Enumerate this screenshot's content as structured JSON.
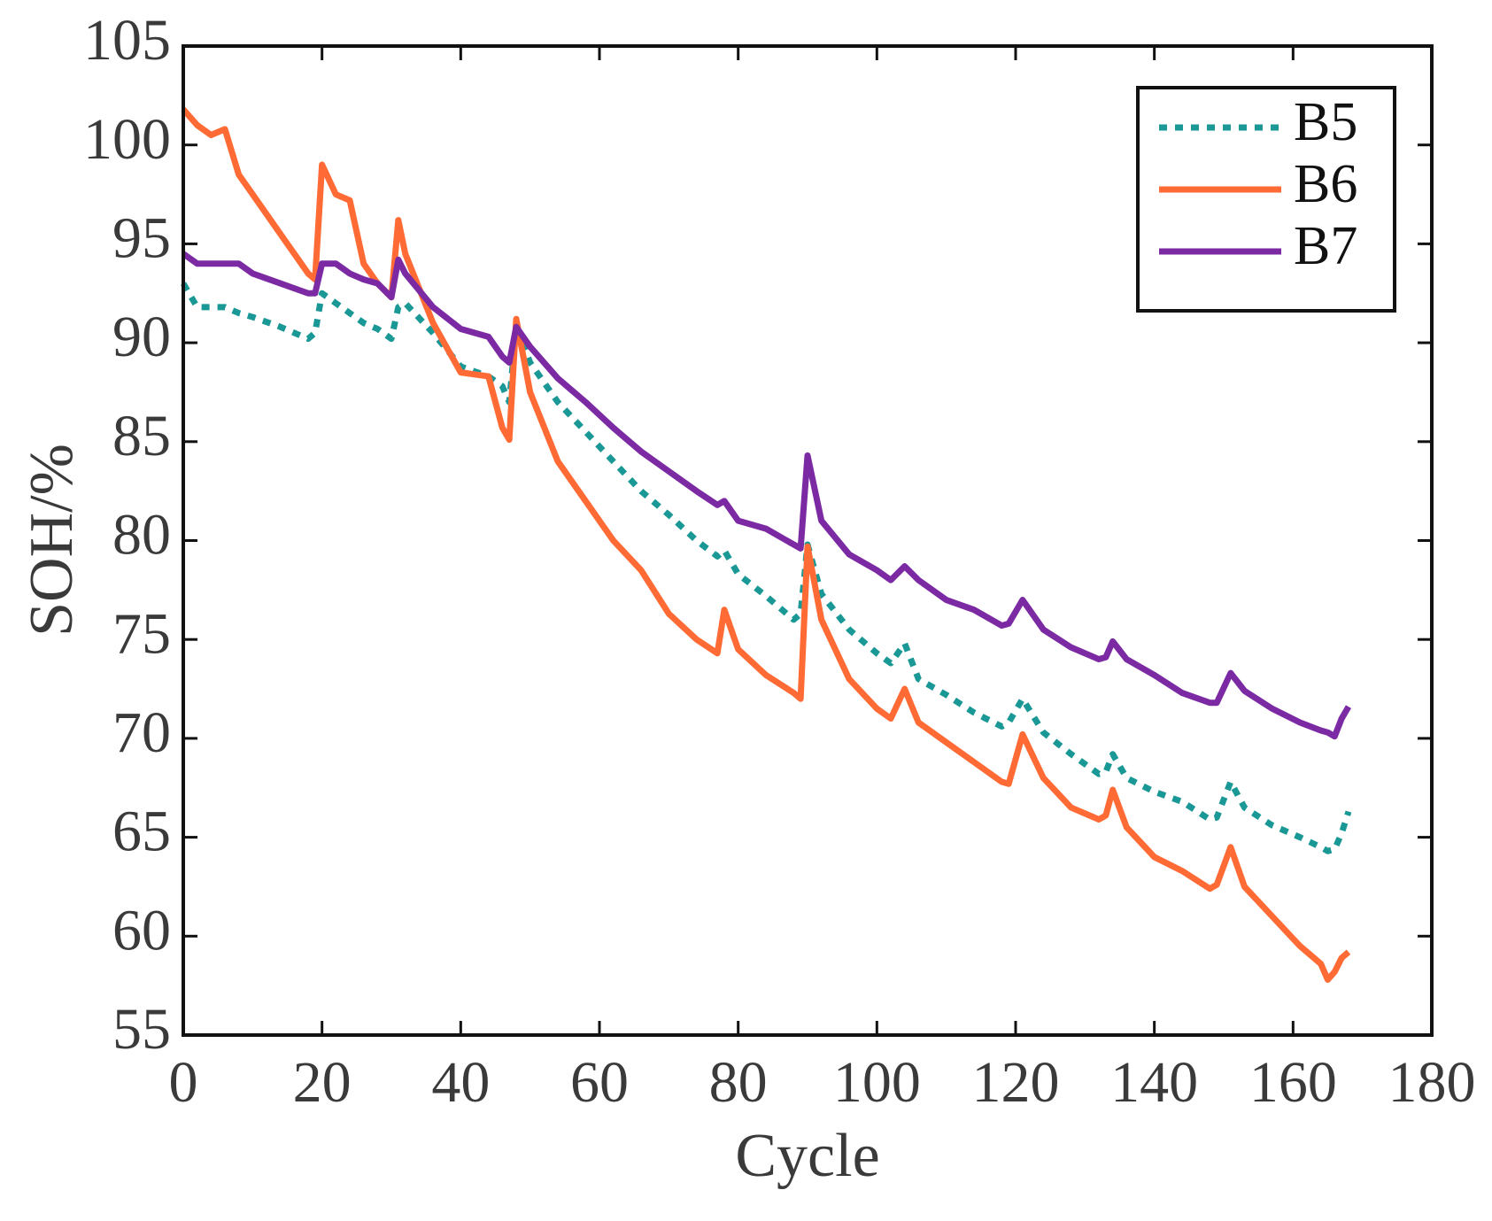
{
  "chart_data": {
    "type": "line",
    "xlabel": "Cycle",
    "ylabel": "SOH/%",
    "x": [
      0,
      2,
      4,
      6,
      8,
      10,
      14,
      18,
      19,
      20,
      22,
      24,
      26,
      28,
      30,
      31,
      32,
      36,
      40,
      44,
      46,
      47,
      48,
      50,
      54,
      58,
      62,
      66,
      70,
      74,
      77,
      78,
      80,
      84,
      88,
      89,
      90,
      92,
      96,
      100,
      102,
      104,
      106,
      110,
      114,
      118,
      119,
      121,
      124,
      128,
      132,
      133,
      134,
      136,
      140,
      144,
      148,
      149,
      151,
      153,
      157,
      161,
      164,
      165,
      166,
      167,
      168
    ],
    "series": [
      {
        "name": "B5",
        "color": "#1a9896",
        "dash": "dotted",
        "values": [
          93,
          91.8,
          91.8,
          91.8,
          91.5,
          91.3,
          90.8,
          90.2,
          90.5,
          92.5,
          92,
          91.5,
          91,
          90.7,
          90.2,
          91.8,
          92,
          90.5,
          88.8,
          88.3,
          87.8,
          87,
          90.8,
          89,
          87,
          85.5,
          84,
          82.5,
          81.3,
          80,
          79.2,
          79.5,
          78.3,
          77.2,
          76,
          76.3,
          79.8,
          77.3,
          75.5,
          74.3,
          73.8,
          74.8,
          73,
          72.2,
          71.3,
          70.6,
          70.8,
          72,
          70.3,
          69.2,
          68.2,
          68.3,
          69.2,
          68,
          67.3,
          66.8,
          65.9,
          66,
          67.8,
          66.5,
          65.6,
          65,
          64.5,
          64.3,
          64.4,
          65.2,
          66.3
        ]
      },
      {
        "name": "B6",
        "color": "#ff6a35",
        "dash": "solid",
        "values": [
          101.8,
          101,
          100.5,
          100.8,
          98.5,
          97.5,
          95.5,
          93.5,
          93.2,
          99,
          97.5,
          97.2,
          94,
          93,
          92.3,
          96.2,
          94.5,
          91,
          88.5,
          88.3,
          85.7,
          85.1,
          91.2,
          87.5,
          84,
          82,
          80,
          78.5,
          76.3,
          75,
          74.3,
          76.5,
          74.5,
          73.2,
          72.3,
          72,
          79.7,
          76,
          73,
          71.5,
          71,
          72.5,
          70.8,
          69.8,
          68.8,
          67.8,
          67.7,
          70.2,
          68,
          66.5,
          65.9,
          66.1,
          67.4,
          65.5,
          64,
          63.3,
          62.4,
          62.6,
          64.5,
          62.5,
          61,
          59.5,
          58.6,
          57.8,
          58.2,
          58.9,
          59.2
        ]
      },
      {
        "name": "B7",
        "color": "#7b2aa3",
        "dash": "solid",
        "values": [
          94.5,
          94,
          94,
          94,
          94,
          93.5,
          93,
          92.5,
          92.5,
          94,
          94,
          93.5,
          93.2,
          93,
          92.3,
          94.2,
          93.5,
          91.8,
          90.7,
          90.3,
          89.3,
          89,
          90.8,
          89.8,
          88.2,
          87,
          85.7,
          84.5,
          83.5,
          82.5,
          81.8,
          82,
          81,
          80.6,
          79.8,
          79.6,
          84.3,
          81,
          79.3,
          78.5,
          78,
          78.7,
          78,
          77,
          76.5,
          75.7,
          75.8,
          77,
          75.5,
          74.6,
          74,
          74.1,
          74.9,
          74,
          73.2,
          72.3,
          71.8,
          71.8,
          73.3,
          72.4,
          71.5,
          70.8,
          70.4,
          70.3,
          70.1,
          71,
          71.6
        ]
      }
    ],
    "xlim": [
      0,
      180
    ],
    "xticks": [
      0,
      20,
      40,
      60,
      80,
      100,
      120,
      140,
      160,
      180
    ],
    "ylim": [
      55,
      105
    ],
    "yticks": [
      55,
      60,
      65,
      70,
      75,
      80,
      85,
      90,
      95,
      100,
      105
    ],
    "grid": false,
    "legend": "upper right"
  }
}
